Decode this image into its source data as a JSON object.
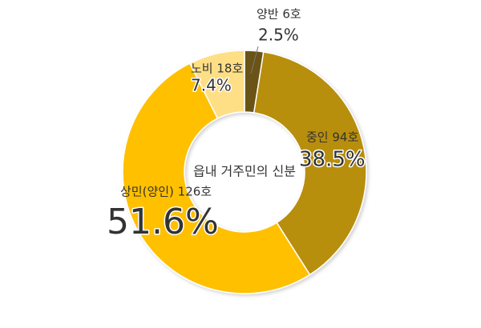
{
  "chart_data": {
    "type": "donut",
    "title": "읍내 거주민의 신분",
    "categories": [
      "양반 6호",
      "중인 94호",
      "상민(양인) 126호",
      "노비 18호"
    ],
    "values": [
      2.5,
      38.5,
      51.6,
      7.4
    ],
    "value_labels": [
      "2.5%",
      "38.5%",
      "51.6%",
      "7.4%"
    ],
    "colors": [
      "#6b5313",
      "#b88e0b",
      "#ffc000",
      "#ffdf85"
    ]
  }
}
